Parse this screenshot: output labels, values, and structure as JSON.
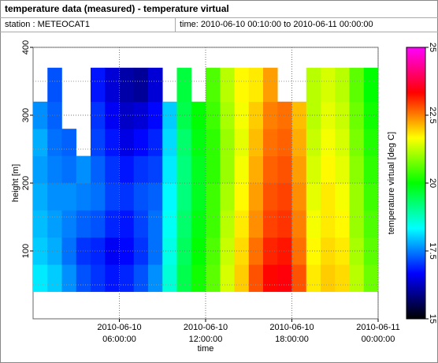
{
  "header": {
    "title": "temperature data (measured) - temperature virtual",
    "station": "station : METEOCAT1",
    "time": "time: 2010-06-10 00:10:00 to 2010-06-11 00:00:00"
  },
  "chart_data": {
    "type": "heatmap",
    "x_label": "time",
    "y_label": "height [m]",
    "colorbar_label": "temperature virtual [deg C]",
    "x": [
      "2010-06-10T00:00:00",
      "2010-06-10T01:00:00",
      "2010-06-10T02:00:00",
      "2010-06-10T03:00:00",
      "2010-06-10T04:00:00",
      "2010-06-10T05:00:00",
      "2010-06-10T06:00:00",
      "2010-06-10T07:00:00",
      "2010-06-10T08:00:00",
      "2010-06-10T09:00:00",
      "2010-06-10T10:00:00",
      "2010-06-10T11:00:00",
      "2010-06-10T12:00:00",
      "2010-06-10T13:00:00",
      "2010-06-10T14:00:00",
      "2010-06-10T15:00:00",
      "2010-06-10T16:00:00",
      "2010-06-10T17:00:00",
      "2010-06-10T18:00:00",
      "2010-06-10T19:00:00",
      "2010-06-10T20:00:00",
      "2010-06-10T21:00:00",
      "2010-06-10T22:00:00",
      "2010-06-10T23:00:00"
    ],
    "y_bins": [
      40,
      80,
      120,
      160,
      200,
      240,
      280,
      320,
      370
    ],
    "z": [
      [
        18.2,
        18.0,
        17.9,
        17.8,
        17.7,
        17.8,
        17.6,
        null
      ],
      [
        18.0,
        17.8,
        17.7,
        17.6,
        17.5,
        17.4,
        17.3,
        17.2
      ],
      [
        17.6,
        17.4,
        17.5,
        17.6,
        17.4,
        17.3,
        null,
        null
      ],
      [
        17.2,
        17.0,
        17.3,
        17.5,
        17.6,
        null,
        null,
        null
      ],
      [
        17.0,
        16.9,
        17.2,
        17.4,
        17.3,
        17.1,
        17.0,
        16.8
      ],
      [
        16.8,
        16.6,
        16.9,
        17.1,
        17.0,
        16.8,
        16.6,
        16.4
      ],
      [
        16.9,
        16.7,
        16.8,
        17.0,
        16.8,
        16.5,
        16.3,
        16.1
      ],
      [
        17.2,
        17.0,
        17.1,
        17.2,
        17.0,
        16.7,
        16.4,
        16.0
      ],
      [
        17.6,
        17.4,
        17.4,
        17.3,
        17.1,
        16.9,
        16.7,
        16.4
      ],
      [
        18.6,
        18.5,
        18.4,
        18.3,
        18.2,
        18.1,
        18.0,
        null
      ],
      [
        19.5,
        19.4,
        19.3,
        19.2,
        19.2,
        19.3,
        19.5,
        19.6
      ],
      [
        20.1,
        20.0,
        19.9,
        19.8,
        19.8,
        19.9,
        20.0,
        null
      ],
      [
        20.6,
        20.5,
        20.4,
        20.4,
        20.3,
        20.3,
        20.4,
        20.5
      ],
      [
        21.4,
        21.3,
        21.2,
        21.1,
        21.0,
        21.0,
        21.1,
        21.2
      ],
      [
        22.0,
        21.9,
        21.8,
        21.7,
        21.6,
        21.5,
        21.6,
        21.7
      ],
      [
        22.8,
        22.6,
        22.4,
        22.3,
        22.2,
        22.1,
        22.0,
        21.8
      ],
      [
        23.3,
        23.1,
        22.9,
        22.8,
        22.7,
        22.6,
        22.5,
        22.3
      ],
      [
        23.4,
        23.2,
        23.0,
        22.9,
        22.8,
        22.7,
        22.6,
        null
      ],
      [
        22.8,
        22.6,
        22.5,
        22.4,
        22.3,
        22.2,
        22.1,
        null
      ],
      [
        21.8,
        21.7,
        21.6,
        21.5,
        21.4,
        21.3,
        21.2,
        21.2
      ],
      [
        22.0,
        21.9,
        21.8,
        21.8,
        21.7,
        21.6,
        21.5,
        21.4
      ],
      [
        21.9,
        21.8,
        21.7,
        21.6,
        21.5,
        21.4,
        21.3,
        21.2
      ],
      [
        21.2,
        21.1,
        21.0,
        21.0,
        20.9,
        20.8,
        20.7,
        20.6
      ],
      [
        20.7,
        20.6,
        20.5,
        20.4,
        20.3,
        20.2,
        20.1,
        20.0
      ]
    ],
    "xlim": [
      "2010-06-10T00:00:00",
      "2010-06-11T00:00:00"
    ],
    "xticks": [
      {
        "value": "2010-06-10T06:00:00",
        "label": [
          "2010-06-10",
          "06:00:00"
        ]
      },
      {
        "value": "2010-06-10T12:00:00",
        "label": [
          "2010-06-10",
          "12:00:00"
        ]
      },
      {
        "value": "2010-06-10T18:00:00",
        "label": [
          "2010-06-10",
          "18:00:00"
        ]
      },
      {
        "value": "2010-06-11T00:00:00",
        "label": [
          "2010-06-11",
          "00:00:00"
        ]
      }
    ],
    "ylim": [
      0,
      400
    ],
    "yticks": [
      100,
      200,
      300,
      400
    ],
    "y_minor_grid": [
      50,
      150,
      250,
      350
    ],
    "zlim": [
      15,
      25
    ],
    "zticks": [
      15,
      17.5,
      20,
      22.5,
      25
    ],
    "colormap": [
      "#000000",
      "#0000ff",
      "#00ffff",
      "#00ff00",
      "#ffff00",
      "#ff0000",
      "#ff00ff"
    ],
    "grid": true
  }
}
